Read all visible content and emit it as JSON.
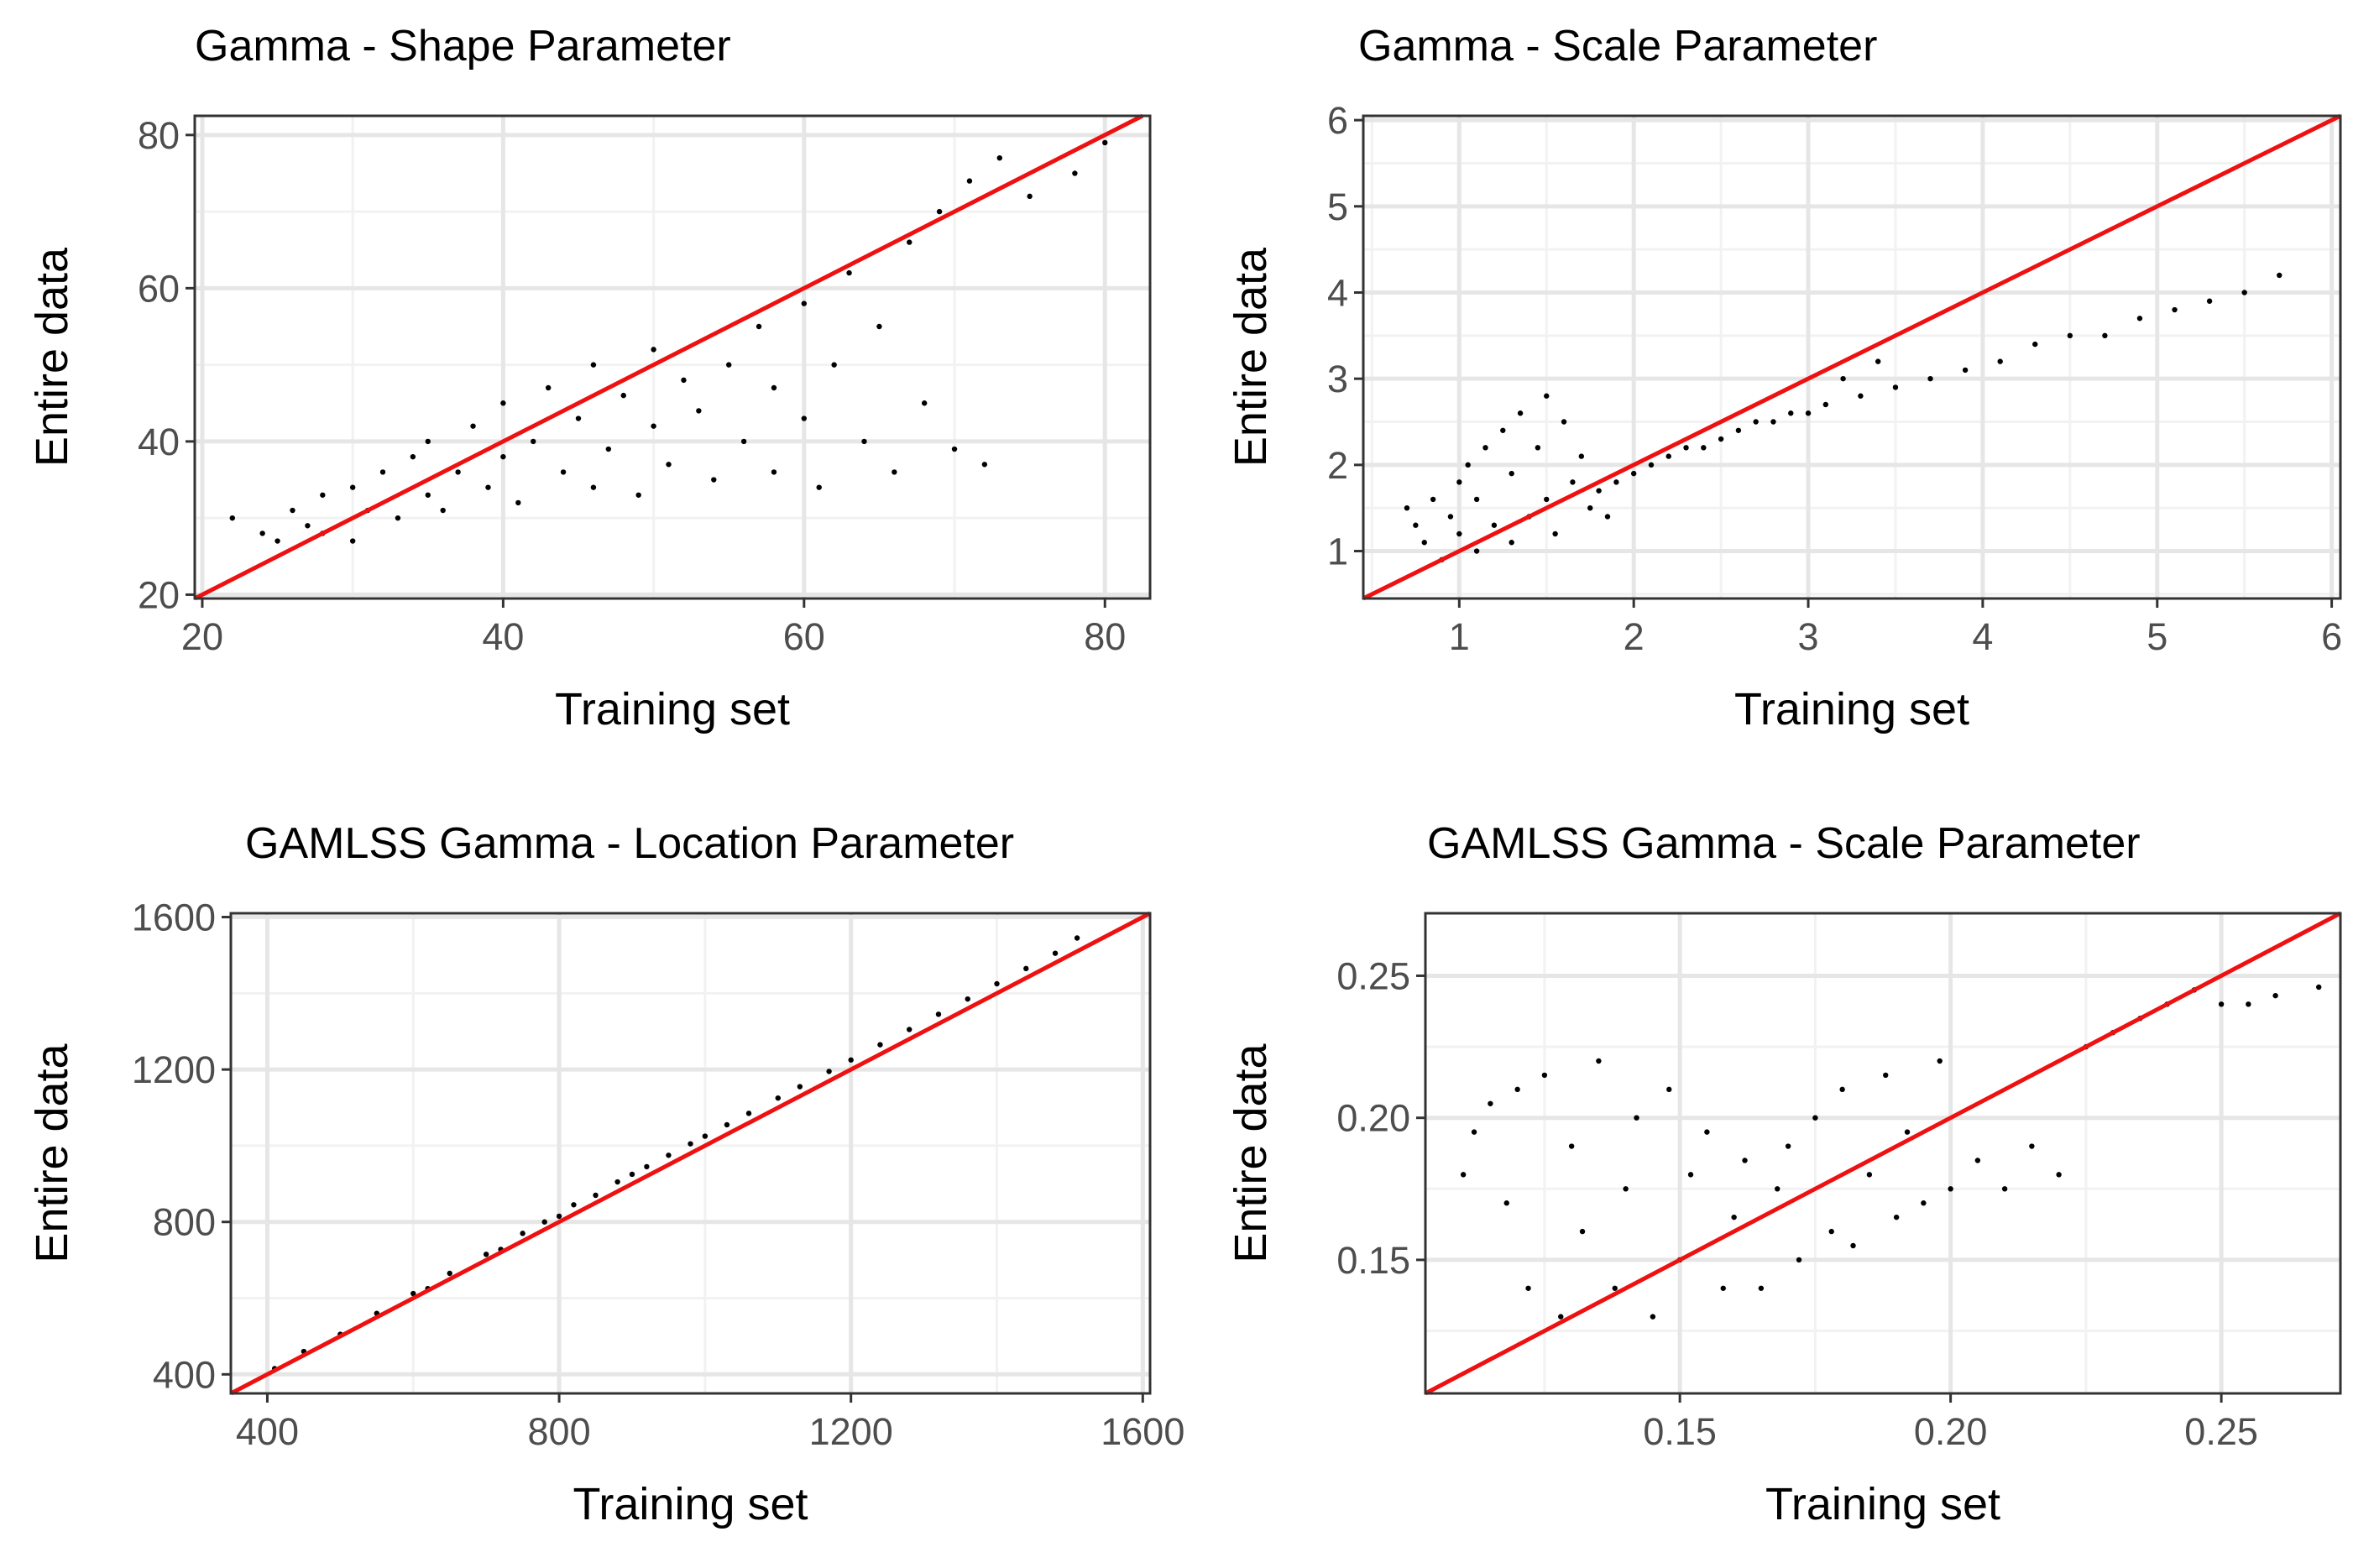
{
  "figure": {
    "background": "#ffffff"
  },
  "chart_data": [
    {
      "type": "scatter",
      "title": "Gamma - Shape Parameter",
      "xlabel": "Training set",
      "ylabel": "Entire data",
      "xlim": [
        19.5,
        83
      ],
      "ylim": [
        19.5,
        82.5
      ],
      "xticks": [
        20,
        40,
        60,
        80
      ],
      "yticks": [
        20,
        40,
        60,
        80
      ],
      "xtick_labels": [
        "20",
        "40",
        "60",
        "80"
      ],
      "ytick_labels": [
        "20",
        "40",
        "60",
        "80"
      ],
      "grid": true,
      "reference_line": {
        "label": "y = x",
        "color": "#ee1111"
      },
      "point_color": "#000000",
      "points": [
        [
          22,
          30
        ],
        [
          24,
          28
        ],
        [
          25,
          27
        ],
        [
          26,
          31
        ],
        [
          27,
          29
        ],
        [
          28,
          28
        ],
        [
          28,
          33
        ],
        [
          30,
          27
        ],
        [
          30,
          34
        ],
        [
          31,
          31
        ],
        [
          32,
          36
        ],
        [
          33,
          30
        ],
        [
          34,
          38
        ],
        [
          35,
          33
        ],
        [
          35,
          40
        ],
        [
          36,
          31
        ],
        [
          37,
          36
        ],
        [
          38,
          42
        ],
        [
          39,
          34
        ],
        [
          40,
          38
        ],
        [
          40,
          45
        ],
        [
          41,
          32
        ],
        [
          42,
          40
        ],
        [
          43,
          47
        ],
        [
          44,
          36
        ],
        [
          45,
          43
        ],
        [
          46,
          34
        ],
        [
          46,
          50
        ],
        [
          47,
          39
        ],
        [
          48,
          46
        ],
        [
          49,
          33
        ],
        [
          50,
          42
        ],
        [
          50,
          52
        ],
        [
          51,
          37
        ],
        [
          52,
          48
        ],
        [
          53,
          44
        ],
        [
          54,
          35
        ],
        [
          55,
          50
        ],
        [
          56,
          40
        ],
        [
          57,
          55
        ],
        [
          58,
          36
        ],
        [
          58,
          47
        ],
        [
          60,
          58
        ],
        [
          60,
          43
        ],
        [
          61,
          34
        ],
        [
          62,
          50
        ],
        [
          63,
          62
        ],
        [
          64,
          40
        ],
        [
          65,
          55
        ],
        [
          66,
          36
        ],
        [
          67,
          66
        ],
        [
          68,
          45
        ],
        [
          69,
          70
        ],
        [
          70,
          39
        ],
        [
          71,
          74
        ],
        [
          72,
          37
        ],
        [
          73,
          77
        ],
        [
          75,
          72
        ],
        [
          78,
          75
        ],
        [
          80,
          79
        ]
      ]
    },
    {
      "type": "scatter",
      "title": "Gamma - Scale Parameter",
      "xlabel": "Training set",
      "ylabel": "Entire data",
      "xlim": [
        0.45,
        6.05
      ],
      "ylim": [
        0.45,
        6.05
      ],
      "xticks": [
        1,
        2,
        3,
        4,
        5,
        6
      ],
      "yticks": [
        1,
        2,
        3,
        4,
        5,
        6
      ],
      "xtick_labels": [
        "1",
        "2",
        "3",
        "4",
        "5",
        "6"
      ],
      "ytick_labels": [
        "1",
        "2",
        "3",
        "4",
        "5",
        "6"
      ],
      "grid": true,
      "reference_line": {
        "label": "y = x",
        "color": "#ee1111"
      },
      "point_color": "#000000",
      "points": [
        [
          0.7,
          1.5
        ],
        [
          0.75,
          1.3
        ],
        [
          0.8,
          1.1
        ],
        [
          0.85,
          1.6
        ],
        [
          0.9,
          0.9
        ],
        [
          0.95,
          1.4
        ],
        [
          1.0,
          1.2
        ],
        [
          1.0,
          1.8
        ],
        [
          1.05,
          2.0
        ],
        [
          1.1,
          1.0
        ],
        [
          1.1,
          1.6
        ],
        [
          1.15,
          2.2
        ],
        [
          1.2,
          1.3
        ],
        [
          1.25,
          2.4
        ],
        [
          1.3,
          1.1
        ],
        [
          1.3,
          1.9
        ],
        [
          1.35,
          2.6
        ],
        [
          1.4,
          1.4
        ],
        [
          1.45,
          2.2
        ],
        [
          1.5,
          2.8
        ],
        [
          1.5,
          1.6
        ],
        [
          1.55,
          1.2
        ],
        [
          1.6,
          2.5
        ],
        [
          1.65,
          1.8
        ],
        [
          1.7,
          2.1
        ],
        [
          1.75,
          1.5
        ],
        [
          1.8,
          1.7
        ],
        [
          1.85,
          1.4
        ],
        [
          1.9,
          1.8
        ],
        [
          2.0,
          1.9
        ],
        [
          2.1,
          2.0
        ],
        [
          2.2,
          2.1
        ],
        [
          2.3,
          2.2
        ],
        [
          2.4,
          2.2
        ],
        [
          2.5,
          2.3
        ],
        [
          2.6,
          2.4
        ],
        [
          2.7,
          2.5
        ],
        [
          2.8,
          2.5
        ],
        [
          2.9,
          2.6
        ],
        [
          3.0,
          2.6
        ],
        [
          3.1,
          2.7
        ],
        [
          3.2,
          3.0
        ],
        [
          3.3,
          2.8
        ],
        [
          3.4,
          3.2
        ],
        [
          3.5,
          2.9
        ],
        [
          3.7,
          3.0
        ],
        [
          3.9,
          3.1
        ],
        [
          4.1,
          3.2
        ],
        [
          4.3,
          3.4
        ],
        [
          4.5,
          3.5
        ],
        [
          4.7,
          3.5
        ],
        [
          4.9,
          3.7
        ],
        [
          5.1,
          3.8
        ],
        [
          5.3,
          3.9
        ],
        [
          5.5,
          4.0
        ],
        [
          5.7,
          4.2
        ]
      ]
    },
    {
      "type": "scatter",
      "title": "GAMLSS Gamma - Location Parameter",
      "xlabel": "Training set",
      "ylabel": "Entire data",
      "xlim": [
        350,
        1610
      ],
      "ylim": [
        350,
        1610
      ],
      "xticks": [
        400,
        800,
        1200,
        1600
      ],
      "yticks": [
        400,
        800,
        1200,
        1600
      ],
      "xtick_labels": [
        "400",
        "800",
        "1200",
        "1600"
      ],
      "ytick_labels": [
        "400",
        "800",
        "1200",
        "1600"
      ],
      "grid": true,
      "reference_line": {
        "label": "y = x",
        "color": "#ee1111"
      },
      "point_color": "#000000",
      "points": [
        [
          410,
          415
        ],
        [
          450,
          460
        ],
        [
          500,
          505
        ],
        [
          550,
          560
        ],
        [
          600,
          612
        ],
        [
          620,
          625
        ],
        [
          650,
          665
        ],
        [
          700,
          715
        ],
        [
          720,
          728
        ],
        [
          750,
          770
        ],
        [
          780,
          800
        ],
        [
          800,
          815
        ],
        [
          820,
          845
        ],
        [
          850,
          870
        ],
        [
          880,
          905
        ],
        [
          900,
          925
        ],
        [
          920,
          945
        ],
        [
          950,
          975
        ],
        [
          980,
          1005
        ],
        [
          1000,
          1025
        ],
        [
          1030,
          1055
        ],
        [
          1060,
          1085
        ],
        [
          1100,
          1125
        ],
        [
          1130,
          1155
        ],
        [
          1170,
          1195
        ],
        [
          1200,
          1225
        ],
        [
          1240,
          1265
        ],
        [
          1280,
          1305
        ],
        [
          1320,
          1345
        ],
        [
          1360,
          1385
        ],
        [
          1400,
          1425
        ],
        [
          1440,
          1465
        ],
        [
          1480,
          1505
        ],
        [
          1510,
          1545
        ]
      ]
    },
    {
      "type": "scatter",
      "title": "GAMLSS Gamma - Scale Parameter",
      "xlabel": "Training set",
      "ylabel": "Entire data",
      "xlim": [
        0.103,
        0.272
      ],
      "ylim": [
        0.103,
        0.272
      ],
      "xticks": [
        0.15,
        0.2,
        0.25
      ],
      "yticks": [
        0.15,
        0.2,
        0.25
      ],
      "xtick_labels": [
        "0.15",
        "0.20",
        "0.25"
      ],
      "ytick_labels": [
        "0.15",
        "0.20",
        "0.25"
      ],
      "grid": true,
      "reference_line": {
        "label": "y = x",
        "color": "#ee1111"
      },
      "point_color": "#000000",
      "points": [
        [
          0.11,
          0.18
        ],
        [
          0.112,
          0.195
        ],
        [
          0.115,
          0.205
        ],
        [
          0.118,
          0.17
        ],
        [
          0.12,
          0.21
        ],
        [
          0.122,
          0.14
        ],
        [
          0.125,
          0.215
        ],
        [
          0.128,
          0.13
        ],
        [
          0.13,
          0.19
        ],
        [
          0.132,
          0.16
        ],
        [
          0.135,
          0.22
        ],
        [
          0.138,
          0.14
        ],
        [
          0.14,
          0.175
        ],
        [
          0.142,
          0.2
        ],
        [
          0.145,
          0.13
        ],
        [
          0.148,
          0.21
        ],
        [
          0.15,
          0.15
        ],
        [
          0.152,
          0.18
        ],
        [
          0.155,
          0.195
        ],
        [
          0.158,
          0.14
        ],
        [
          0.16,
          0.165
        ],
        [
          0.162,
          0.185
        ],
        [
          0.165,
          0.14
        ],
        [
          0.168,
          0.175
        ],
        [
          0.17,
          0.19
        ],
        [
          0.172,
          0.15
        ],
        [
          0.175,
          0.2
        ],
        [
          0.178,
          0.16
        ],
        [
          0.18,
          0.21
        ],
        [
          0.182,
          0.155
        ],
        [
          0.185,
          0.18
        ],
        [
          0.188,
          0.215
        ],
        [
          0.19,
          0.165
        ],
        [
          0.192,
          0.195
        ],
        [
          0.195,
          0.17
        ],
        [
          0.198,
          0.22
        ],
        [
          0.2,
          0.175
        ],
        [
          0.205,
          0.185
        ],
        [
          0.21,
          0.175
        ],
        [
          0.215,
          0.19
        ],
        [
          0.22,
          0.18
        ],
        [
          0.225,
          0.225
        ],
        [
          0.23,
          0.23
        ],
        [
          0.235,
          0.235
        ],
        [
          0.24,
          0.24
        ],
        [
          0.245,
          0.245
        ],
        [
          0.25,
          0.24
        ],
        [
          0.255,
          0.24
        ],
        [
          0.26,
          0.243
        ],
        [
          0.268,
          0.246
        ]
      ]
    }
  ]
}
